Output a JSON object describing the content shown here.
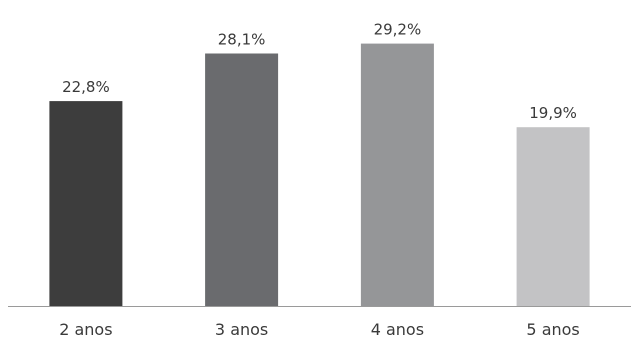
{
  "chart_data": {
    "type": "bar",
    "categories": [
      "2 anos",
      "3 anos",
      "4 anos",
      "5 anos"
    ],
    "values": [
      22.8,
      28.1,
      29.2,
      19.9
    ],
    "data_labels": [
      "22,8%",
      "28,1%",
      "29,2%",
      "19,9%"
    ],
    "bar_colors": [
      "#3d3d3d",
      "#6a6b6e",
      "#959698",
      "#c3c3c5"
    ],
    "ylim": [
      0,
      30.6
    ],
    "title": "",
    "xlabel": "",
    "ylabel": "",
    "grid": false,
    "legend": false
  }
}
